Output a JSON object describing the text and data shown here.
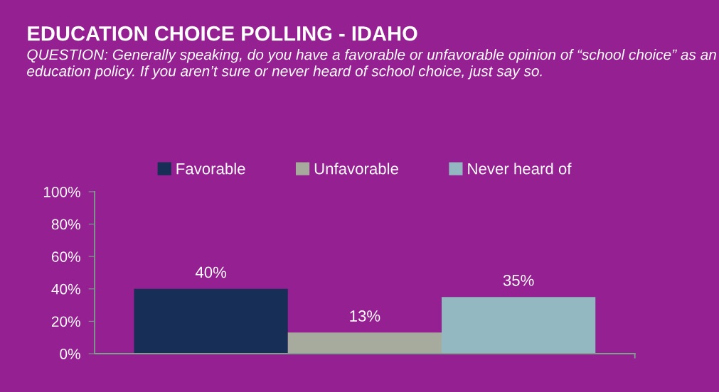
{
  "chart_data": {
    "type": "bar",
    "title": "EDUCATION CHOICE POLLING - IDAHO",
    "subtitle": "QUESTION: Generally speaking, do you have a favorable or unfavorable opinion of “school choice” as an education policy. If you aren’t sure or never heard of school choice, just say so.",
    "categories": [
      null
    ],
    "series": [
      {
        "name": "Favorable",
        "color": "#172e57",
        "values": [
          40
        ],
        "value_labels": [
          "40%"
        ]
      },
      {
        "name": "Unfavorable",
        "color": "#a7ab9d",
        "values": [
          13
        ],
        "value_labels": [
          "13%"
        ]
      },
      {
        "name": "Never heard of",
        "color": "#93b8c2",
        "values": [
          35
        ],
        "value_labels": [
          "35%"
        ]
      }
    ],
    "ylim": [
      0,
      100
    ],
    "yticks": [
      {
        "value": 0,
        "label": "0%"
      },
      {
        "value": 20,
        "label": "20%"
      },
      {
        "value": 40,
        "label": "40%"
      },
      {
        "value": 60,
        "label": "60%"
      },
      {
        "value": 80,
        "label": "80%"
      },
      {
        "value": 100,
        "label": "100%"
      }
    ],
    "grid": false,
    "legend": "top"
  }
}
